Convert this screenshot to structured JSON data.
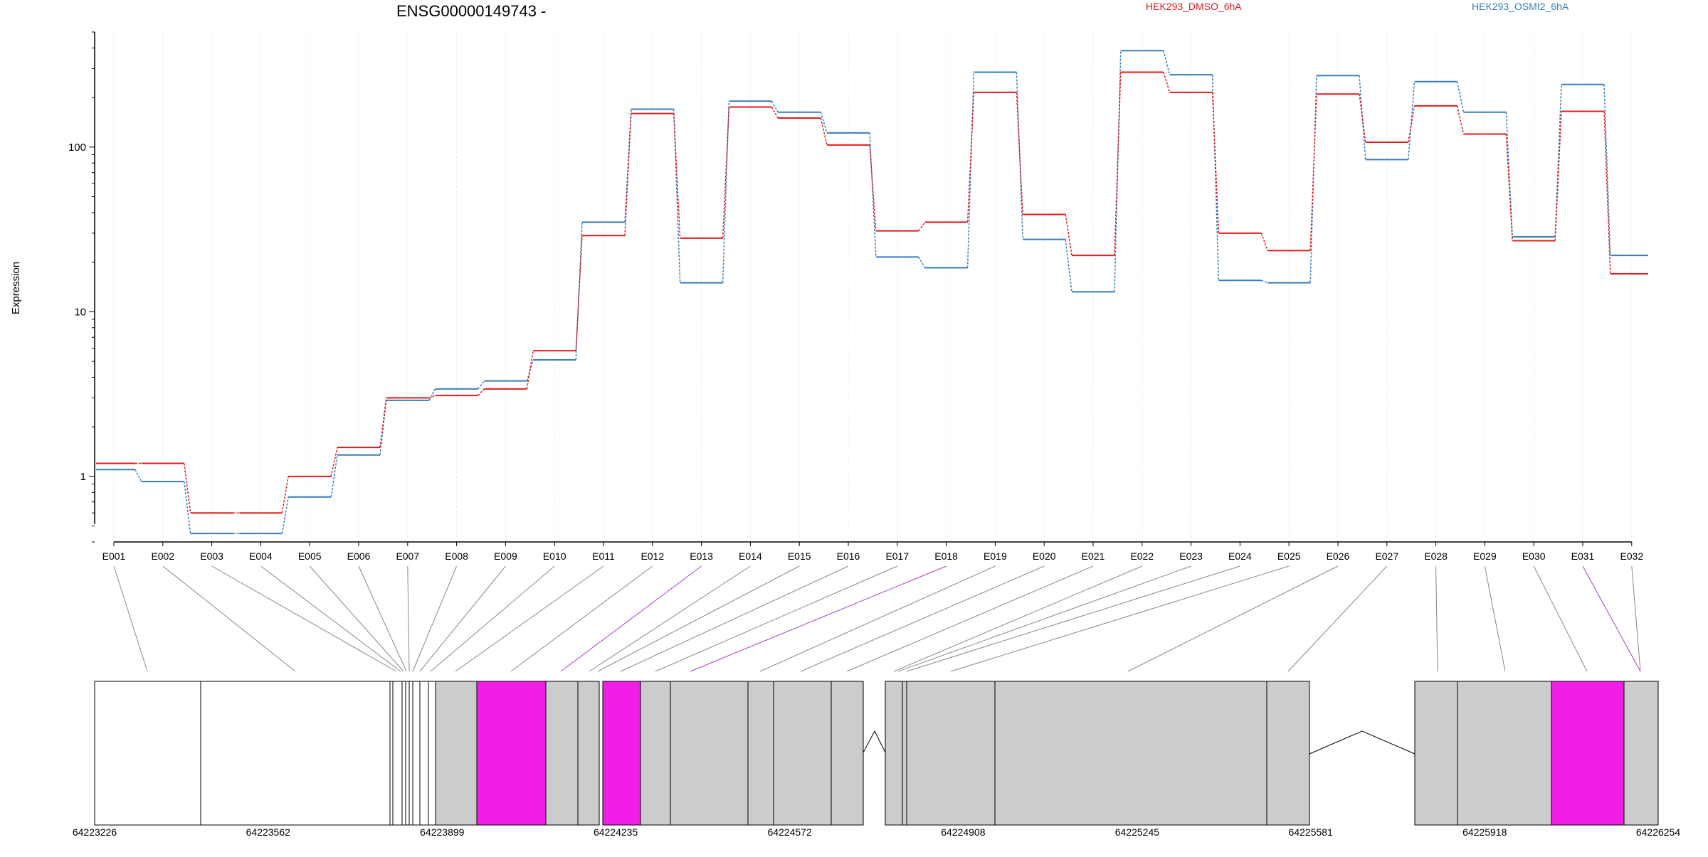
{
  "chart_data": {
    "type": "line",
    "title": "ENSG00000149743 -",
    "ylabel": "Expression",
    "yscale": "log",
    "ylim": [
      0.4,
      500
    ],
    "yticks": [
      1,
      10,
      100
    ],
    "ytick_labels": [
      "1",
      "10",
      "100"
    ],
    "categories": [
      "E001",
      "E002",
      "E003",
      "E004",
      "E005",
      "E006",
      "E007",
      "E008",
      "E009",
      "E010",
      "E011",
      "E012",
      "E013",
      "E014",
      "E015",
      "E016",
      "E017",
      "E018",
      "E019",
      "E020",
      "E021",
      "E022",
      "E023",
      "E024",
      "E025",
      "E026",
      "E027",
      "E028",
      "E029",
      "E030",
      "E031",
      "E032"
    ],
    "series": [
      {
        "name": "HEK293_DMSO_6hA",
        "color": "#e41a1c",
        "values": [
          1.2,
          1.2,
          0.6,
          0.6,
          1.0,
          1.5,
          3.0,
          3.1,
          3.4,
          5.8,
          29,
          160,
          28,
          175,
          150,
          103,
          31,
          35,
          215,
          39,
          22,
          285,
          215,
          30,
          23.5,
          210,
          107,
          178,
          120,
          27,
          165,
          17
        ]
      },
      {
        "name": "HEK293_OSMI2_6hA",
        "color": "#377eb8",
        "values": [
          1.1,
          0.93,
          0.45,
          0.45,
          0.75,
          1.35,
          2.9,
          3.4,
          3.8,
          5.1,
          35,
          170,
          15,
          190,
          163,
          122,
          21.5,
          18.5,
          285,
          27.5,
          13.2,
          385,
          275,
          15.5,
          15.0,
          272,
          84,
          250,
          163,
          28.5,
          240,
          22
        ]
      }
    ],
    "gene_model": {
      "coordinate_ticks": [
        "64223226",
        "64223562",
        "64223899",
        "64224235",
        "64224572",
        "64224908",
        "64225245",
        "64225581",
        "64225918",
        "64226254"
      ],
      "highlighted_exons": [
        "E013",
        "E018",
        "E031"
      ],
      "highlight_color": "#f01ee6",
      "exon_color": "#cccccc"
    }
  }
}
